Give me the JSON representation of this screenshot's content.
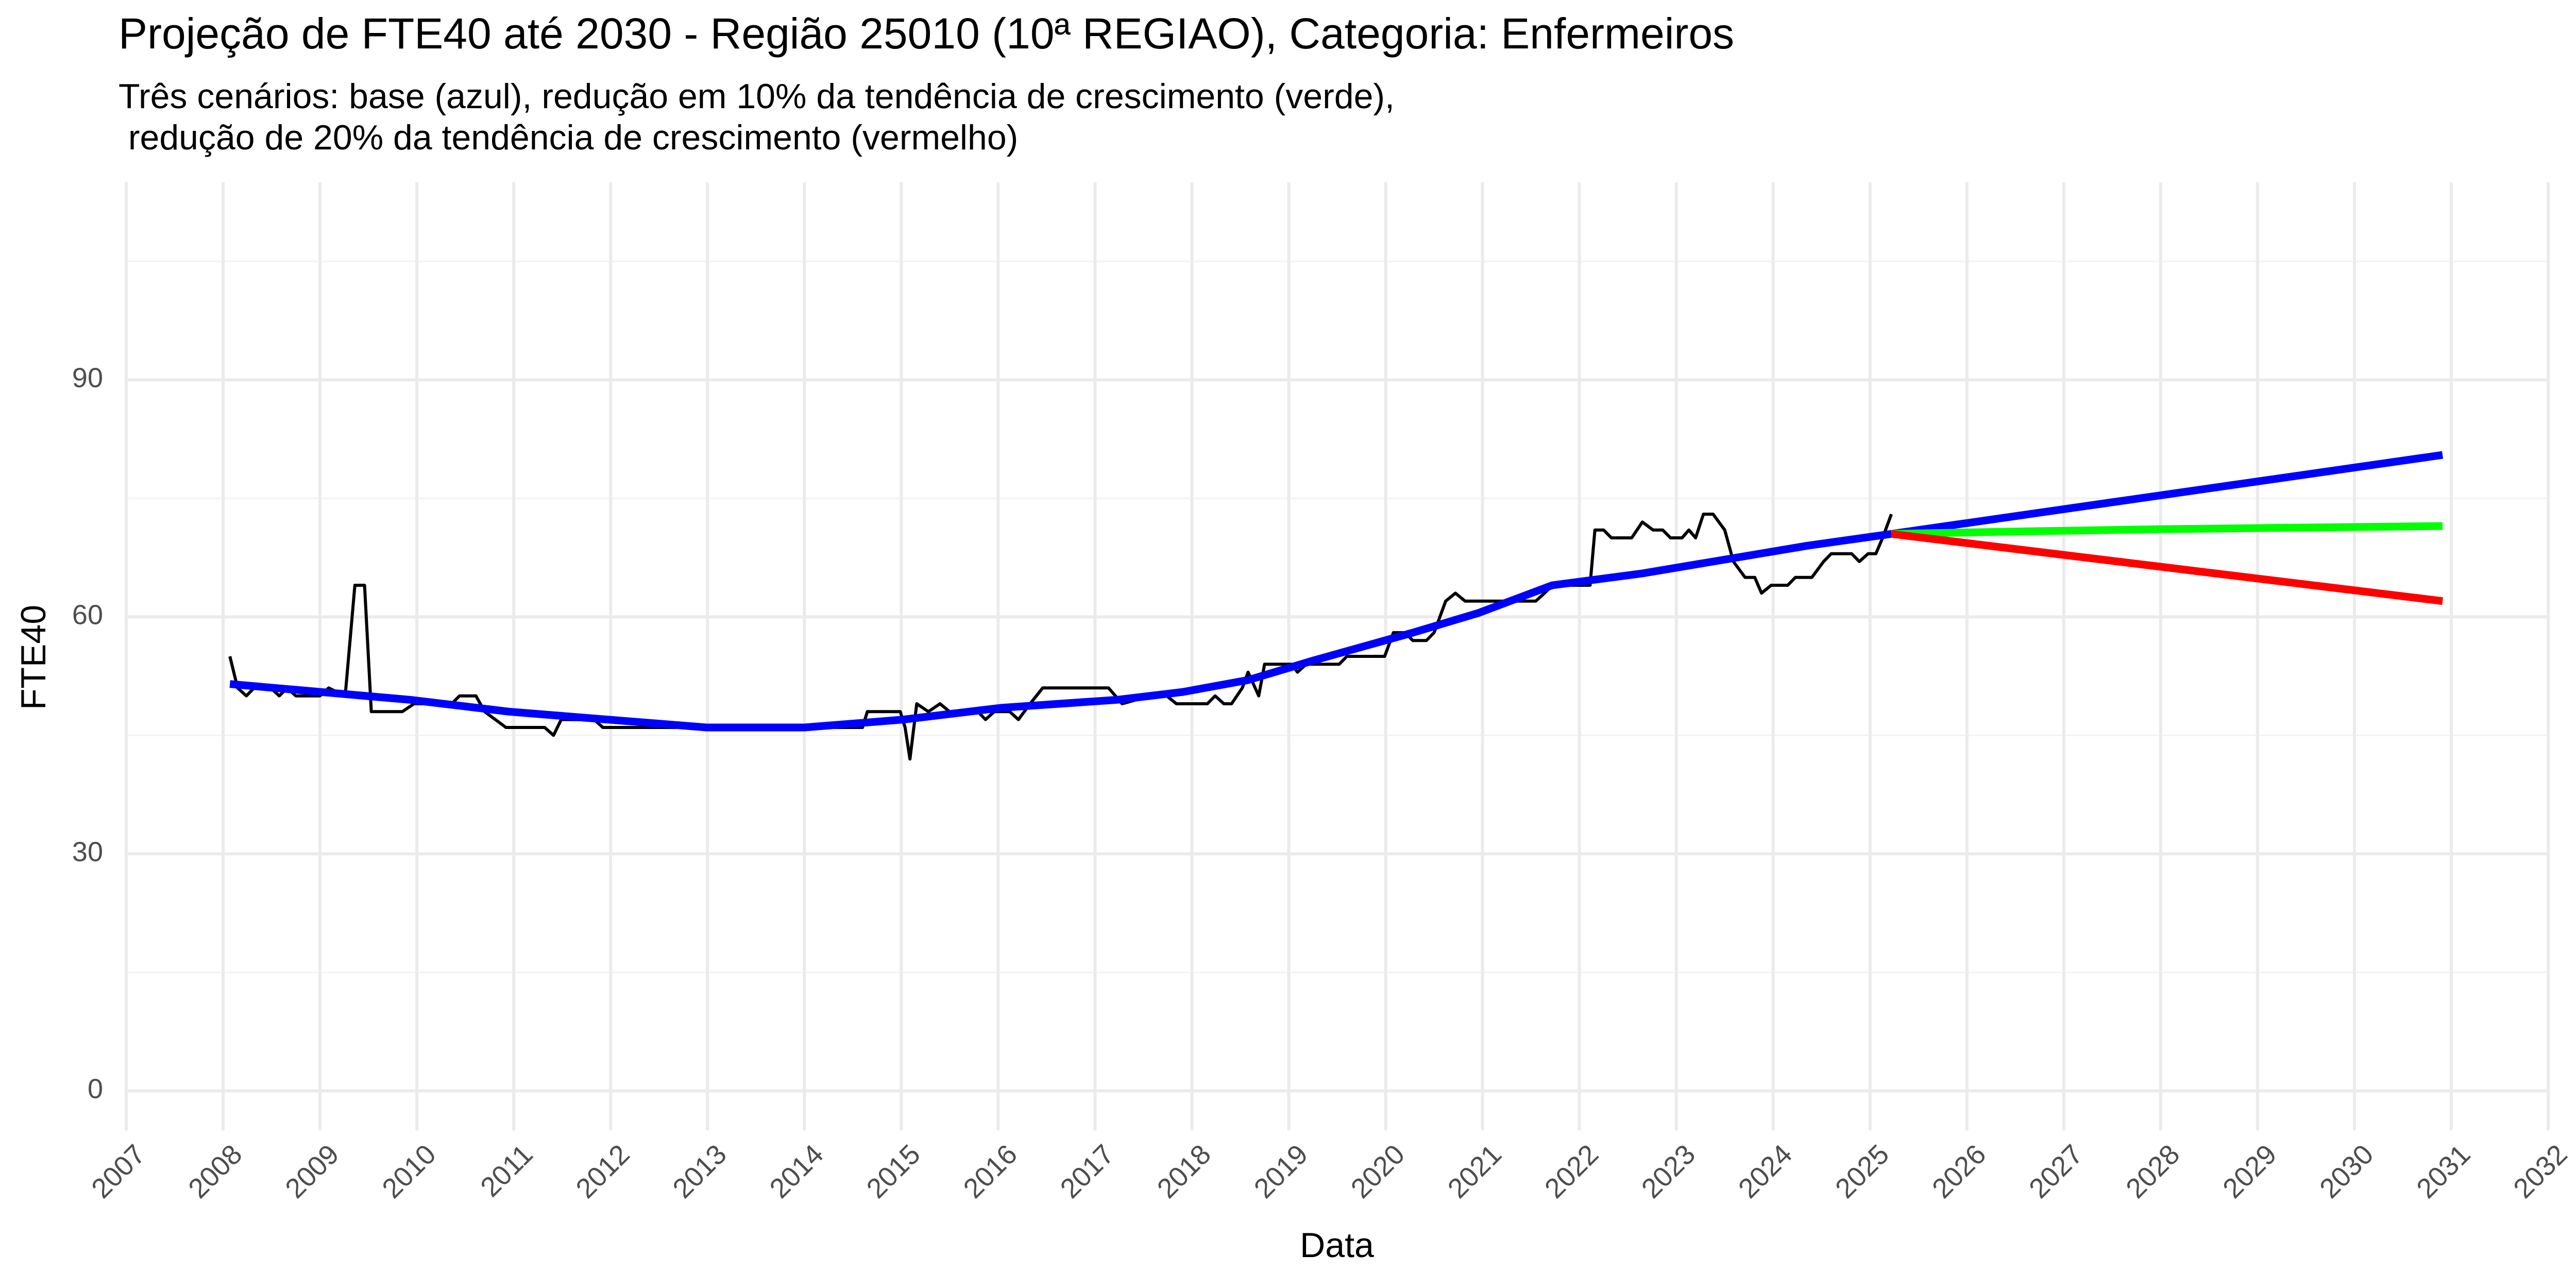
{
  "chart_data": {
    "type": "line",
    "title": "Projeção de FTE40 até 2030 - Região 25010 (10ª REGIAO), Categoria: Enfermeiros",
    "subtitle": [
      "Três cenários: base (azul), redução em 10% da tendência de crescimento (verde),",
      " redução de 20% da tendência de crescimento (vermelho)"
    ],
    "x_label": "Data",
    "y_label": "FTE40",
    "xlim": [
      2007,
      2032
    ],
    "ylim": [
      -5,
      115
    ],
    "xticks": [
      2007,
      2008,
      2009,
      2010,
      2011,
      2012,
      2013,
      2014,
      2015,
      2016,
      2017,
      2018,
      2019,
      2020,
      2021,
      2022,
      2023,
      2024,
      2025,
      2026,
      2027,
      2028,
      2029,
      2030,
      2031,
      2032
    ],
    "yticks": [
      0,
      30,
      60,
      90
    ],
    "grid": true,
    "series": [
      {
        "color": "#000000",
        "width": "thin",
        "x": [
          2008.07,
          2008.15,
          2008.24,
          2008.32,
          2008.49,
          2008.58,
          2008.66,
          2008.75,
          2009.0,
          2009.09,
          2009.26,
          2009.36,
          2009.46,
          2009.53,
          2009.85,
          2009.97,
          2010.36,
          2010.44,
          2010.61,
          2010.7,
          2010.92,
          2011.32,
          2011.41,
          2011.49,
          2011.83,
          2011.92,
          2012.82,
          2013.84,
          2014.6,
          2014.65,
          2014.99,
          2015.04,
          2015.09,
          2015.16,
          2015.28,
          2015.4,
          2015.5,
          2015.79,
          2015.87,
          2015.96,
          2016.12,
          2016.21,
          2016.33,
          2016.46,
          2017.14,
          2017.28,
          2017.57,
          2017.74,
          2017.84,
          2018.16,
          2018.24,
          2018.33,
          2018.41,
          2018.52,
          2018.58,
          2018.69,
          2018.75,
          2019.03,
          2019.09,
          2019.18,
          2019.52,
          2019.6,
          2019.99,
          2020.08,
          2020.2,
          2020.28,
          2020.42,
          2020.5,
          2020.62,
          2020.72,
          2020.82,
          2021.55,
          2021.64,
          2021.72,
          2022.11,
          2022.16,
          2022.25,
          2022.33,
          2022.54,
          2022.65,
          2022.76,
          2022.86,
          2022.94,
          2023.06,
          2023.13,
          2023.2,
          2023.28,
          2023.38,
          2023.5,
          2023.59,
          2023.71,
          2023.81,
          2023.88,
          2023.98,
          2024.15,
          2024.23,
          2024.4,
          2024.52,
          2024.6,
          2024.81,
          2024.89,
          2024.98,
          2025.06,
          2025.13,
          2025.22
        ],
        "values": [
          55,
          51,
          50,
          51,
          51,
          50,
          51,
          50,
          50,
          51,
          50,
          64,
          64,
          48,
          48,
          49,
          49,
          50,
          50,
          48,
          46,
          46,
          45,
          47,
          47,
          46,
          46,
          46,
          46,
          48,
          48,
          46,
          42,
          49,
          48,
          49,
          48,
          48,
          47,
          48,
          48,
          47,
          49,
          51,
          51,
          49,
          50,
          50,
          49,
          49,
          50,
          49,
          49,
          51,
          53,
          50,
          54,
          54,
          53,
          54,
          54,
          55,
          55,
          58,
          58,
          57,
          57,
          58,
          62,
          63,
          62,
          62,
          63,
          64,
          64,
          71,
          71,
          70,
          70,
          72,
          71,
          71,
          70,
          70,
          71,
          70,
          73,
          73,
          71,
          67,
          65,
          65,
          63,
          64,
          64,
          65,
          65,
          67,
          68,
          68,
          67,
          68,
          68,
          70,
          73
        ]
      },
      {
        "color": "#0000ff",
        "width": "thick",
        "x": [
          2008.07,
          2009.93,
          2010.95,
          2011.97,
          2012.99,
          2014.0,
          2015.02,
          2016.04,
          2017.23,
          2017.91,
          2018.58,
          2019.26,
          2020.28,
          2020.96,
          2021.72,
          2022.65,
          2024.35,
          2025.22,
          2030.91
        ],
        "values": [
          51.5,
          49.5,
          48,
          47,
          46,
          46,
          47,
          48.5,
          49.5,
          50.5,
          52,
          54.5,
          58,
          60.5,
          64,
          65.5,
          69,
          70.5,
          80.5
        ]
      },
      {
        "color": "#00ff00",
        "width": "thick",
        "x": [
          2025.22,
          2026.5,
          2028.0,
          2030.91
        ],
        "values": [
          70.5,
          70.8,
          71.1,
          71.5
        ]
      },
      {
        "color": "#ff0000",
        "width": "thick",
        "x": [
          2025.22,
          2030.91
        ],
        "values": [
          70.5,
          62
        ]
      }
    ]
  }
}
